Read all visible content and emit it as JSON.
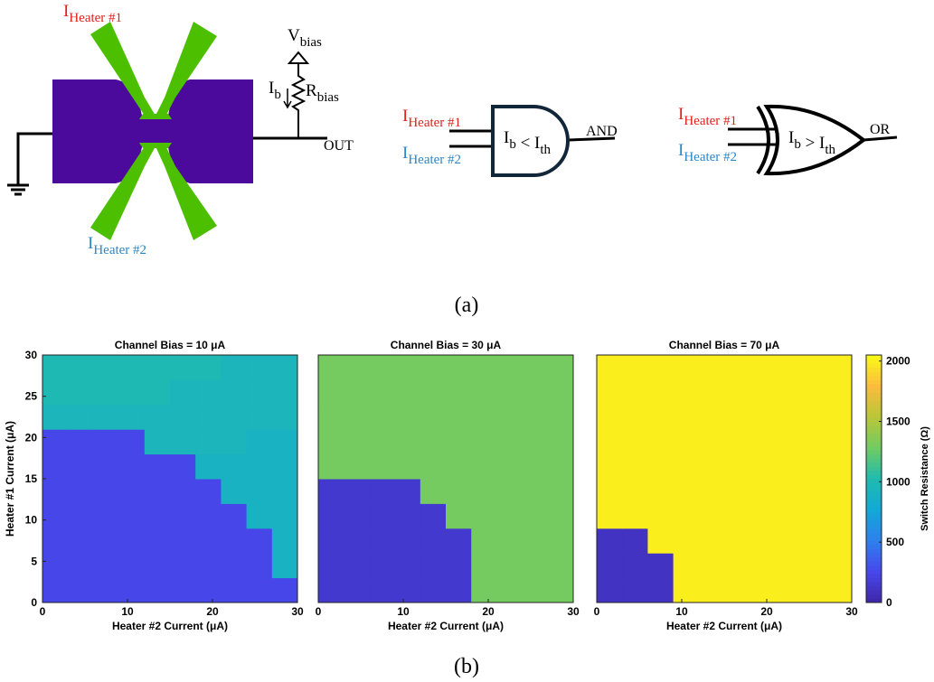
{
  "schematic": {
    "heater1": {
      "main": "I",
      "sub": "Heater #1"
    },
    "heater2": {
      "main": "I",
      "sub": "Heater #2"
    },
    "vbias": {
      "main": "V",
      "sub": "bias"
    },
    "ib": {
      "main": "I",
      "sub": "b"
    },
    "rbias": {
      "main": "R",
      "sub": "bias"
    },
    "out": "OUT",
    "and_gate": {
      "in1": {
        "main": "I",
        "sub": "Heater #1"
      },
      "in2": {
        "main": "I",
        "sub": "Heater #2"
      },
      "left": {
        "main": "I",
        "sub": "b"
      },
      "op": " < ",
      "right": {
        "main": "I",
        "sub": "th"
      },
      "output": "AND"
    },
    "or_gate": {
      "in1": {
        "main": "I",
        "sub": "Heater #1"
      },
      "in2": {
        "main": "I",
        "sub": "Heater #2"
      },
      "left": {
        "main": "I",
        "sub": "b"
      },
      "op": " > ",
      "right": {
        "main": "I",
        "sub": "th"
      },
      "output": "OR"
    },
    "caption": "(a)"
  },
  "caption_b": "(b)",
  "chart_data": [
    {
      "type": "heatmap",
      "title": "Channel Bias = 10 μA",
      "x_label": "Heater #2 Current (μA)",
      "y_label": "Heater #1 Current (μA)",
      "x": [
        1.5,
        4.5,
        7.5,
        10.5,
        13.5,
        16.5,
        19.5,
        22.5,
        25.5,
        28.5
      ],
      "y": [
        1.5,
        4.5,
        7.5,
        10.5,
        13.5,
        16.5,
        19.5,
        22.5,
        25.5,
        28.5
      ],
      "xlim": [
        0,
        30
      ],
      "ylim": [
        0,
        30
      ],
      "xticks": [
        0,
        10,
        20,
        30
      ],
      "yticks": [
        0,
        5,
        10,
        15,
        20,
        25,
        30
      ],
      "clim": [
        0,
        2050
      ],
      "z": [
        [
          250,
          250,
          250,
          250,
          250,
          250,
          250,
          250,
          250,
          250
        ],
        [
          250,
          250,
          250,
          250,
          250,
          250,
          250,
          250,
          250,
          900
        ],
        [
          250,
          250,
          250,
          250,
          250,
          250,
          250,
          250,
          250,
          900
        ],
        [
          250,
          250,
          250,
          250,
          250,
          250,
          250,
          250,
          900,
          900
        ],
        [
          250,
          250,
          250,
          250,
          250,
          250,
          250,
          900,
          900,
          900
        ],
        [
          250,
          250,
          250,
          250,
          250,
          250,
          900,
          900,
          900,
          900
        ],
        [
          250,
          250,
          250,
          250,
          950,
          950,
          950,
          950,
          900,
          900
        ],
        [
          950,
          950,
          950,
          950,
          950,
          950,
          950,
          950,
          950,
          950
        ],
        [
          1000,
          1000,
          1000,
          1000,
          1000,
          950,
          950,
          950,
          950,
          950
        ],
        [
          1000,
          1000,
          1000,
          1000,
          1000,
          1000,
          1000,
          950,
          950,
          950
        ]
      ]
    },
    {
      "type": "heatmap",
      "title": "Channel Bias = 30 μA",
      "x_label": "Heater #2 Current (μA)",
      "x": [
        1.5,
        4.5,
        7.5,
        10.5,
        13.5,
        16.5,
        19.5,
        22.5,
        25.5,
        28.5
      ],
      "y": [
        1.5,
        4.5,
        7.5,
        10.5,
        13.5,
        16.5,
        19.5,
        22.5,
        25.5,
        28.5
      ],
      "xlim": [
        0,
        30
      ],
      "ylim": [
        0,
        30
      ],
      "xticks": [
        0,
        10,
        20,
        30
      ],
      "clim": [
        0,
        2050
      ],
      "z": [
        [
          150,
          150,
          150,
          150,
          150,
          150,
          1300,
          1300,
          1300,
          1300
        ],
        [
          150,
          150,
          150,
          150,
          150,
          150,
          1300,
          1300,
          1300,
          1300
        ],
        [
          150,
          150,
          150,
          150,
          150,
          150,
          1300,
          1300,
          1300,
          1300
        ],
        [
          150,
          150,
          150,
          150,
          150,
          1300,
          1300,
          1300,
          1300,
          1300
        ],
        [
          150,
          150,
          150,
          150,
          1300,
          1300,
          1300,
          1300,
          1300,
          1300
        ],
        [
          1300,
          1300,
          1300,
          1300,
          1300,
          1300,
          1300,
          1300,
          1300,
          1300
        ],
        [
          1300,
          1300,
          1300,
          1300,
          1300,
          1300,
          1300,
          1300,
          1300,
          1300
        ],
        [
          1300,
          1300,
          1300,
          1300,
          1300,
          1300,
          1300,
          1300,
          1300,
          1300
        ],
        [
          1300,
          1300,
          1300,
          1300,
          1300,
          1300,
          1300,
          1300,
          1300,
          1300
        ],
        [
          1300,
          1300,
          1300,
          1300,
          1300,
          1300,
          1300,
          1300,
          1300,
          1300
        ]
      ]
    },
    {
      "type": "heatmap",
      "title": "Channel Bias = 70 μA",
      "x_label": "Heater #2 Current (μA)",
      "x": [
        1.5,
        4.5,
        7.5,
        10.5,
        13.5,
        16.5,
        19.5,
        22.5,
        25.5,
        28.5
      ],
      "y": [
        1.5,
        4.5,
        7.5,
        10.5,
        13.5,
        16.5,
        19.5,
        22.5,
        25.5,
        28.5
      ],
      "xlim": [
        0,
        30
      ],
      "ylim": [
        0,
        30
      ],
      "xticks": [
        0,
        10,
        20,
        30
      ],
      "clim": [
        0,
        2050
      ],
      "colorbar_label": "Switch Resistance (Ω)",
      "colorbar_ticks": [
        0,
        500,
        1000,
        1500,
        2000
      ],
      "z": [
        [
          100,
          100,
          100,
          2000,
          2000,
          2000,
          2000,
          2000,
          2000,
          2000
        ],
        [
          100,
          100,
          100,
          2000,
          2000,
          2000,
          2000,
          2000,
          2000,
          2000
        ],
        [
          100,
          100,
          2000,
          2000,
          2000,
          2000,
          2000,
          2000,
          2000,
          2000
        ],
        [
          2000,
          2000,
          2000,
          2000,
          2000,
          2000,
          2000,
          2000,
          2000,
          2000
        ],
        [
          2000,
          2000,
          2000,
          2000,
          2000,
          2000,
          2000,
          2000,
          2000,
          2000
        ],
        [
          2000,
          2000,
          2000,
          2000,
          2000,
          2000,
          2000,
          2000,
          2000,
          2000
        ],
        [
          2000,
          2000,
          2000,
          2000,
          2000,
          2000,
          2000,
          2000,
          2000,
          2000
        ],
        [
          2000,
          2000,
          2000,
          2000,
          2000,
          2000,
          2000,
          2000,
          2000,
          2000
        ],
        [
          2000,
          2000,
          2000,
          2000,
          2000,
          2000,
          2000,
          2000,
          2000,
          2000
        ],
        [
          2000,
          2000,
          2000,
          2000,
          2000,
          2000,
          2000,
          2000,
          2000,
          2000
        ]
      ]
    }
  ]
}
